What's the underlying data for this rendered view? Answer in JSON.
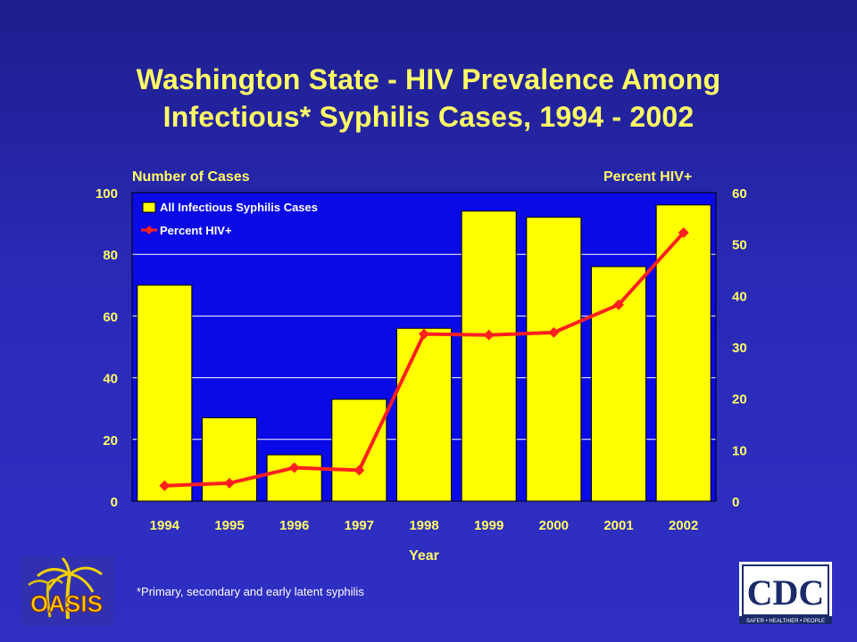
{
  "title_line1": "Washington State - HIV Prevalence Among",
  "title_line2": "Infectious* Syphilis Cases, 1994 - 2002",
  "footnote": "*Primary, secondary and early latent syphilis",
  "logos": {
    "oasis_text": "OASIS",
    "cdc_text": "CDC",
    "cdc_tagline": "SAFER • HEALTHIER • PEOPLE"
  },
  "colors": {
    "bar": "#ffff00",
    "line": "#ff2020",
    "text": "#ffff66",
    "plot_bg": "#0a0ae6"
  },
  "chart_data": {
    "type": "bar",
    "title": "Washington State - HIV Prevalence Among Infectious* Syphilis Cases, 1994 - 2002",
    "xlabel": "Year",
    "ylabel": "Number of Cases",
    "y2label": "Percent HIV+",
    "categories": [
      "1994",
      "1995",
      "1996",
      "1997",
      "1998",
      "1999",
      "2000",
      "2001",
      "2002"
    ],
    "ylim": [
      0,
      100
    ],
    "y2lim": [
      0,
      60
    ],
    "yticks": [
      0,
      20,
      40,
      60,
      80,
      100
    ],
    "y2ticks": [
      0,
      10,
      20,
      30,
      40,
      50,
      60
    ],
    "grid": true,
    "legend_position": "top-left",
    "series": [
      {
        "name": "All Infectious Syphilis Cases",
        "type": "bar",
        "axis": "left",
        "values": [
          70,
          27,
          15,
          33,
          56,
          94,
          92,
          76,
          96
        ]
      },
      {
        "name": "Percent HIV+",
        "type": "line",
        "axis": "right",
        "marker": "diamond",
        "values": [
          3,
          3.5,
          6.5,
          6,
          32.5,
          32.3,
          32.8,
          38.2,
          52.2
        ]
      }
    ]
  }
}
